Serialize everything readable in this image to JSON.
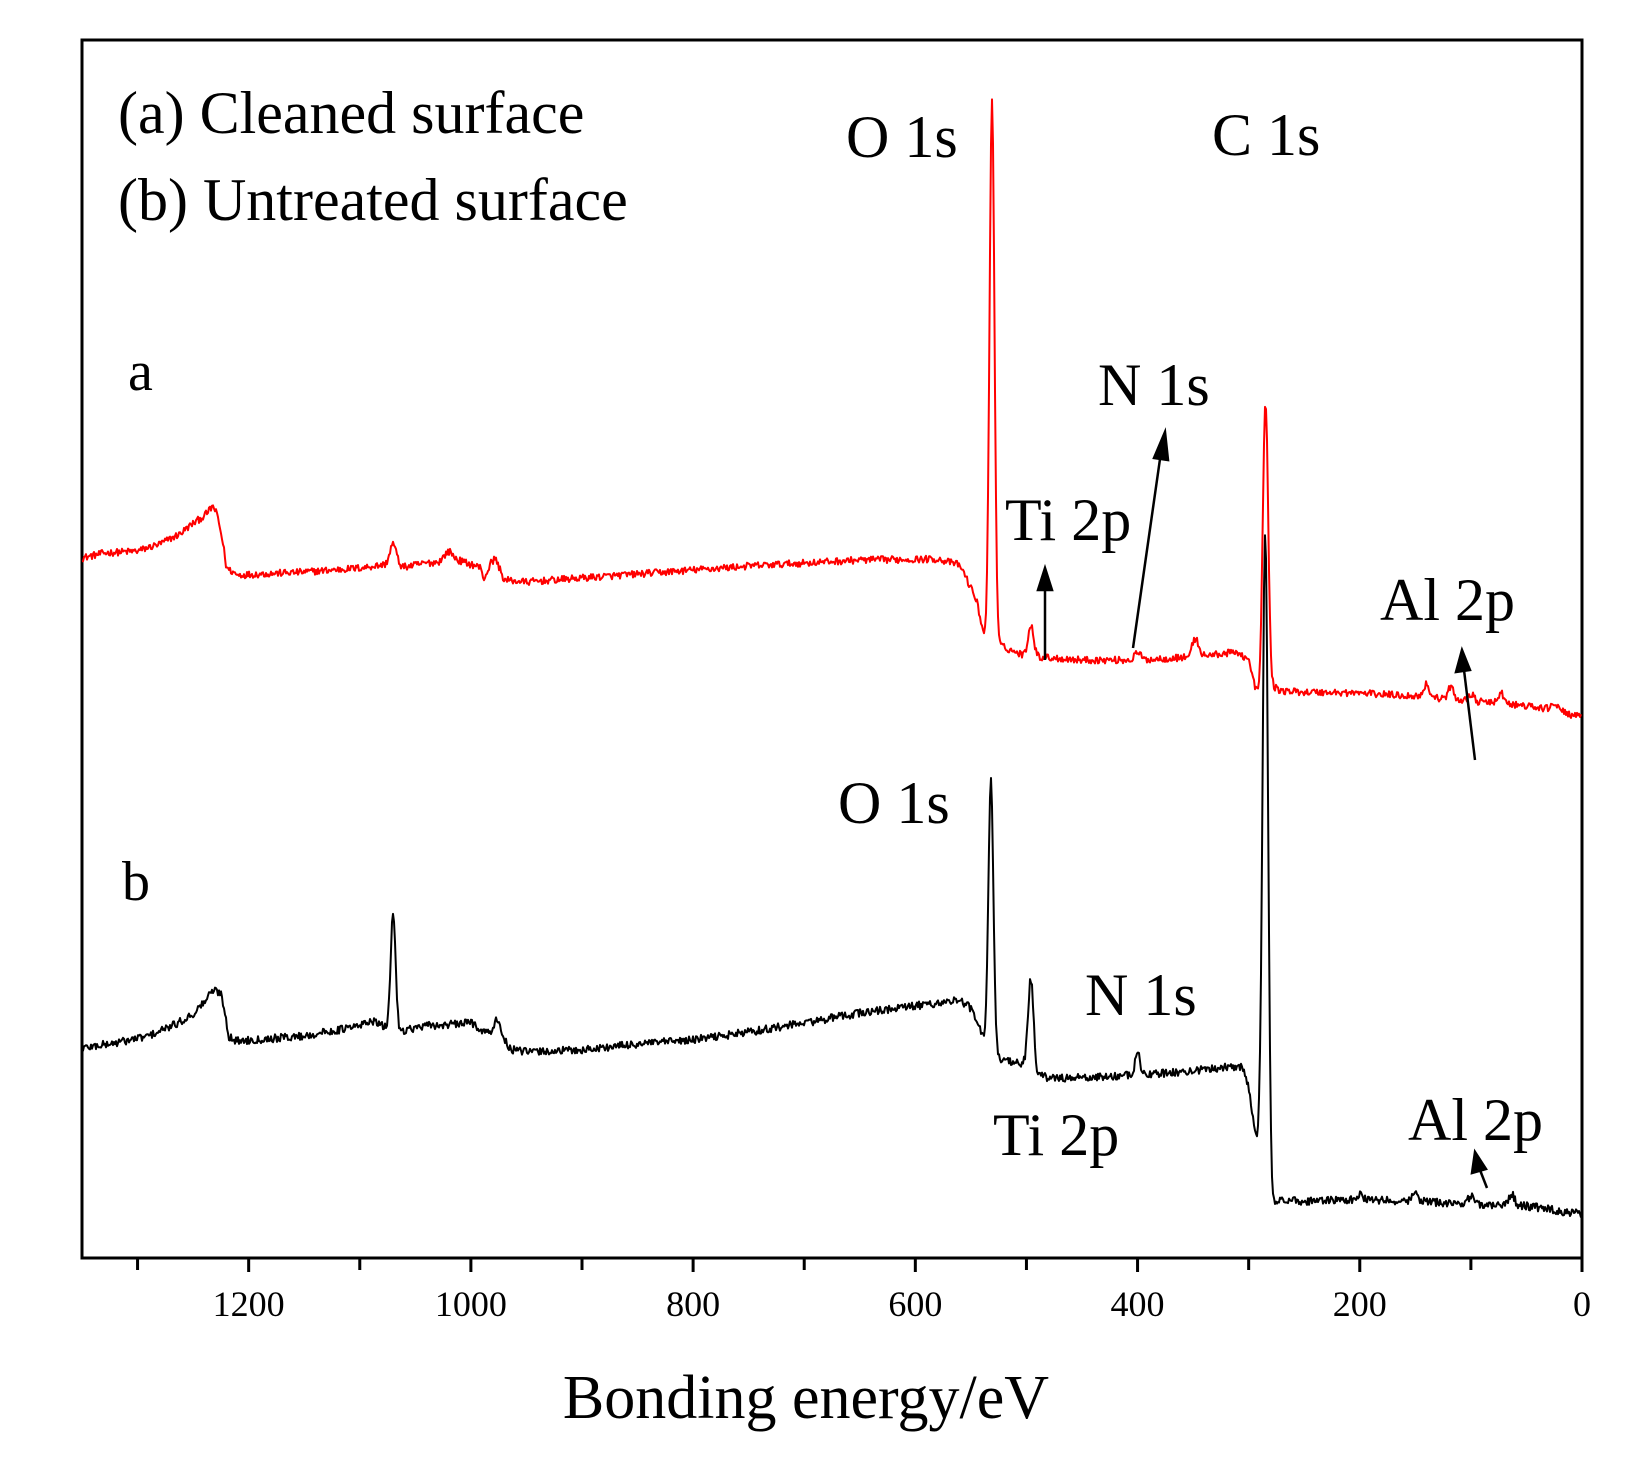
{
  "chart_data": {
    "type": "line",
    "title": "",
    "xlabel": "Bonding energy/eV",
    "ylabel": "",
    "xlim": [
      1350,
      0
    ],
    "x_reversed": true,
    "y_ticks_shown": false,
    "xticks": [
      1200,
      1000,
      800,
      600,
      400,
      200,
      0
    ],
    "xtick_labels": [
      "1200",
      "1000",
      "800",
      "600",
      "400",
      "200",
      "0"
    ],
    "legend": [
      "(a) Cleaned surface",
      "(b) Untreated surface"
    ],
    "legend_position": "top-left",
    "series": [
      {
        "name": "a",
        "label": "a",
        "description": "Cleaned surface",
        "color": "#ff0000",
        "baseline": [
          [
            1350,
            700
          ],
          [
            1330,
            705
          ],
          [
            1300,
            707
          ],
          [
            1280,
            714
          ],
          [
            1262,
            724
          ],
          [
            1252,
            733
          ],
          [
            1240,
            742
          ],
          [
            1232,
            752
          ],
          [
            1228,
            742
          ],
          [
            1223,
            714
          ],
          [
            1220,
            690
          ],
          [
            1210,
            683
          ],
          [
            1150,
            686
          ],
          [
            1100,
            690
          ],
          [
            1080,
            693
          ],
          [
            1060,
            691
          ],
          [
            1040,
            695
          ],
          [
            1010,
            697
          ],
          [
            992,
            691
          ],
          [
            988,
            679
          ],
          [
            982,
            695
          ],
          [
            978,
            700
          ],
          [
            970,
            678
          ],
          [
            950,
            676
          ],
          [
            900,
            680
          ],
          [
            850,
            684
          ],
          [
            800,
            688
          ],
          [
            750,
            692
          ],
          [
            700,
            695
          ],
          [
            650,
            698
          ],
          [
            580,
            699
          ],
          [
            560,
            693
          ],
          [
            555,
            682
          ],
          [
            545,
            658
          ],
          [
            538,
            622
          ],
          [
            534,
            615
          ],
          [
            525,
            613
          ],
          [
            510,
            606
          ],
          [
            500,
            602
          ],
          [
            450,
            598
          ],
          [
            400,
            598
          ],
          [
            350,
            601
          ],
          [
            310,
            606
          ],
          [
            300,
            598
          ],
          [
            295,
            574
          ],
          [
            290,
            558
          ],
          [
            286,
            570
          ],
          [
            283,
            594
          ],
          [
            280,
            572
          ],
          [
            270,
            567
          ],
          [
            250,
            566
          ],
          [
            200,
            565
          ],
          [
            150,
            562
          ],
          [
            100,
            557
          ],
          [
            50,
            552
          ],
          [
            20,
            547
          ],
          [
            0,
            540
          ]
        ],
        "peaks": [
          {
            "x": 531,
            "height": 545,
            "width": 2.2
          },
          {
            "x": 285,
            "height": 275,
            "width": 2.4
          },
          {
            "x": 1070,
            "height": 22,
            "width": 3
          },
          {
            "x": 1020,
            "height": 10,
            "width": 4
          },
          {
            "x": 496,
            "height": 32,
            "width": 2.5
          },
          {
            "x": 400,
            "height": 8,
            "width": 2.5
          },
          {
            "x": 348,
            "height": 18,
            "width": 3
          },
          {
            "x": 140,
            "height": 13,
            "width": 2.5
          },
          {
            "x": 118,
            "height": 12,
            "width": 2.5
          },
          {
            "x": 100,
            "height": 7,
            "width": 2.5
          },
          {
            "x": 73,
            "height": 11,
            "width": 2.5
          },
          {
            "x": 25,
            "height": 7,
            "width": 3
          }
        ],
        "noise_amplitude": 3.5
      },
      {
        "name": "b",
        "label": "b",
        "description": "Untreated surface",
        "color": "#000000",
        "baseline": [
          [
            1350,
            210
          ],
          [
            1320,
            215
          ],
          [
            1290,
            222
          ],
          [
            1265,
            234
          ],
          [
            1250,
            244
          ],
          [
            1240,
            256
          ],
          [
            1232,
            268
          ],
          [
            1225,
            265
          ],
          [
            1222,
            250
          ],
          [
            1218,
            222
          ],
          [
            1212,
            217
          ],
          [
            1150,
            222
          ],
          [
            1100,
            232
          ],
          [
            1090,
            238
          ],
          [
            1080,
            232
          ],
          [
            1070,
            226
          ],
          [
            1060,
            228
          ],
          [
            1040,
            232
          ],
          [
            1010,
            234
          ],
          [
            1000,
            236
          ],
          [
            990,
            228
          ],
          [
            982,
            224
          ],
          [
            978,
            238
          ],
          [
            974,
            232
          ],
          [
            966,
            209
          ],
          [
            950,
            206
          ],
          [
            900,
            208
          ],
          [
            850,
            214
          ],
          [
            800,
            218
          ],
          [
            750,
            226
          ],
          [
            700,
            235
          ],
          [
            650,
            245
          ],
          [
            600,
            252
          ],
          [
            560,
            258
          ],
          [
            550,
            250
          ],
          [
            543,
            232
          ],
          [
            536,
            208
          ],
          [
            530,
            200
          ],
          [
            500,
            194
          ],
          [
            492,
            184
          ],
          [
            480,
            180
          ],
          [
            450,
            180
          ],
          [
            400,
            183
          ],
          [
            350,
            187
          ],
          [
            315,
            192
          ],
          [
            305,
            190
          ],
          [
            300,
            170
          ],
          [
            296,
            138
          ],
          [
            292,
            117
          ],
          [
            289,
            128
          ],
          [
            286,
            150
          ],
          [
            282,
            100
          ],
          [
            279,
            57
          ],
          [
            250,
            57
          ],
          [
            200,
            58
          ],
          [
            150,
            57
          ],
          [
            100,
            54
          ],
          [
            50,
            52
          ],
          [
            20,
            47
          ],
          [
            0,
            44
          ]
        ],
        "peaks": [
          {
            "x": 532,
            "height": 275,
            "width": 2.3
          },
          {
            "x": 285,
            "height": 590,
            "width": 2.4
          },
          {
            "x": 1070,
            "height": 120,
            "width": 2.2
          },
          {
            "x": 496,
            "height": 90,
            "width": 2.4
          },
          {
            "x": 400,
            "height": 22,
            "width": 2.2
          },
          {
            "x": 200,
            "height": 5,
            "width": 2.5
          },
          {
            "x": 150,
            "height": 8,
            "width": 2.5
          },
          {
            "x": 100,
            "height": 8,
            "width": 2.5
          },
          {
            "x": 63,
            "height": 11,
            "width": 2.5
          }
        ],
        "noise_amplitude": 4
      }
    ],
    "annotations": [
      {
        "text": "O 1s",
        "series": "a"
      },
      {
        "text": "C 1s",
        "series": "a"
      },
      {
        "text": "N 1s",
        "series": "a"
      },
      {
        "text": "Ti 2p",
        "series": "a"
      },
      {
        "text": "Al 2p",
        "series": "a"
      },
      {
        "text": "O 1s",
        "series": "b"
      },
      {
        "text": "N 1s",
        "series": "b"
      },
      {
        "text": "Ti 2p",
        "series": "b"
      },
      {
        "text": "Al 2p",
        "series": "b"
      }
    ]
  }
}
